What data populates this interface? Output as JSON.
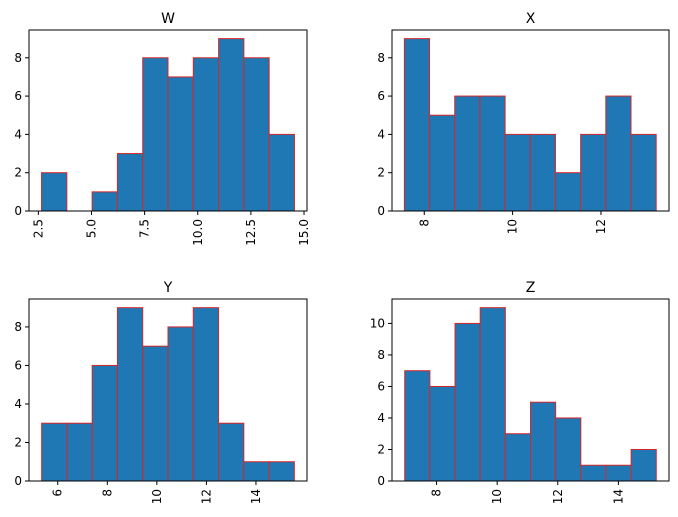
{
  "colors": {
    "bar_fill": "#1f77b4",
    "bar_edge": "#d62728",
    "axis": "#000000"
  },
  "chart_data": [
    {
      "type": "bar",
      "title": "W",
      "bin_edges": [
        2.65,
        3.84,
        5.03,
        6.22,
        7.41,
        8.6,
        9.79,
        10.98,
        12.17,
        13.36,
        14.55
      ],
      "values": [
        2,
        0,
        1,
        3,
        8,
        7,
        8,
        9,
        8,
        4
      ],
      "xlim": [
        2.06,
        15.14
      ],
      "ylim": [
        0,
        9.45
      ],
      "xticks": [
        2.5,
        5.0,
        7.5,
        10.0,
        12.5,
        15.0
      ],
      "xtick_labels": [
        "2.5",
        "5.0",
        "7.5",
        "10.0",
        "12.5",
        "15.0"
      ],
      "yticks": [
        0,
        2,
        4,
        6,
        8
      ],
      "ytick_labels": [
        "0",
        "2",
        "4",
        "6",
        "8"
      ]
    },
    {
      "type": "bar",
      "title": "X",
      "bin_edges": [
        7.55,
        8.12,
        8.69,
        9.26,
        9.83,
        10.4,
        10.97,
        11.54,
        12.11,
        12.68,
        13.25
      ],
      "values": [
        9,
        5,
        6,
        6,
        4,
        4,
        2,
        4,
        6,
        4
      ],
      "xlim": [
        7.27,
        13.54
      ],
      "ylim": [
        0,
        9.45
      ],
      "xticks": [
        8,
        10,
        12
      ],
      "xtick_labels": [
        "8",
        "10",
        "12"
      ],
      "yticks": [
        0,
        2,
        4,
        6,
        8
      ],
      "ytick_labels": [
        "0",
        "2",
        "4",
        "6",
        "8"
      ]
    },
    {
      "type": "bar",
      "title": "Y",
      "bin_edges": [
        5.35,
        6.37,
        7.39,
        8.41,
        9.43,
        10.45,
        11.47,
        12.49,
        13.51,
        14.53,
        15.55
      ],
      "values": [
        3,
        3,
        6,
        9,
        7,
        8,
        9,
        3,
        1,
        1
      ],
      "xlim": [
        4.84,
        16.06
      ],
      "ylim": [
        0,
        9.45
      ],
      "xticks": [
        6,
        8,
        10,
        12,
        14
      ],
      "xtick_labels": [
        "6",
        "8",
        "10",
        "12",
        "14"
      ],
      "yticks": [
        0,
        2,
        4,
        6,
        8
      ],
      "ytick_labels": [
        "0",
        "2",
        "4",
        "6",
        "8"
      ]
    },
    {
      "type": "bar",
      "title": "Z",
      "bin_edges": [
        6.95,
        7.78,
        8.61,
        9.44,
        10.27,
        11.1,
        11.93,
        12.76,
        13.59,
        14.42,
        15.25
      ],
      "values": [
        7,
        6,
        10,
        11,
        3,
        5,
        4,
        1,
        1,
        2
      ],
      "xlim": [
        6.53,
        15.67
      ],
      "ylim": [
        0,
        11.55
      ],
      "xticks": [
        8,
        10,
        12,
        14
      ],
      "xtick_labels": [
        "8",
        "10",
        "12",
        "14"
      ],
      "yticks": [
        0,
        2,
        4,
        6,
        8,
        10
      ],
      "ytick_labels": [
        "0",
        "2",
        "4",
        "6",
        "8",
        "10"
      ]
    }
  ]
}
